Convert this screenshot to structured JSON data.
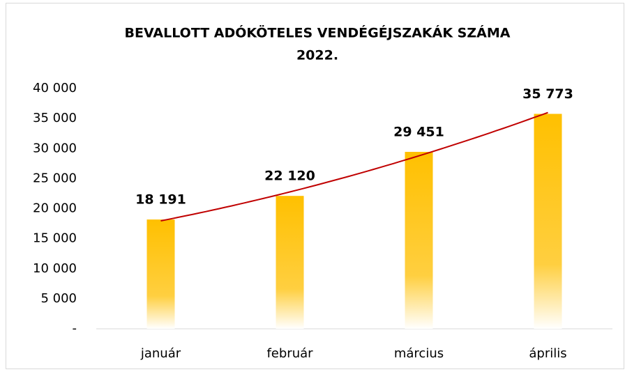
{
  "chart_data": {
    "type": "bar",
    "title": [
      "BEVALLOTT ADÓKÖTELES VENDÉGÉJSZAKÁK SZÁMA",
      "2022."
    ],
    "categories": [
      "január",
      "február",
      "március",
      "április"
    ],
    "values": [
      18191,
      22120,
      29451,
      35773
    ],
    "value_labels": [
      "18 191",
      "22 120",
      "29 451",
      "35 773"
    ],
    "color": "#FFC000",
    "trendline_color": "#C00000",
    "ylim": [
      0,
      40000
    ],
    "yticks": [
      {
        "value": 0,
        "label": "-"
      },
      {
        "value": 5000,
        "label": "5 000"
      },
      {
        "value": 10000,
        "label": "10 000"
      },
      {
        "value": 15000,
        "label": "15 000"
      },
      {
        "value": 20000,
        "label": "20 000"
      },
      {
        "value": 25000,
        "label": "25 000"
      },
      {
        "value": 30000,
        "label": "30 000"
      },
      {
        "value": 35000,
        "label": "35 000"
      },
      {
        "value": 40000,
        "label": "40 000"
      }
    ],
    "grid": false
  }
}
